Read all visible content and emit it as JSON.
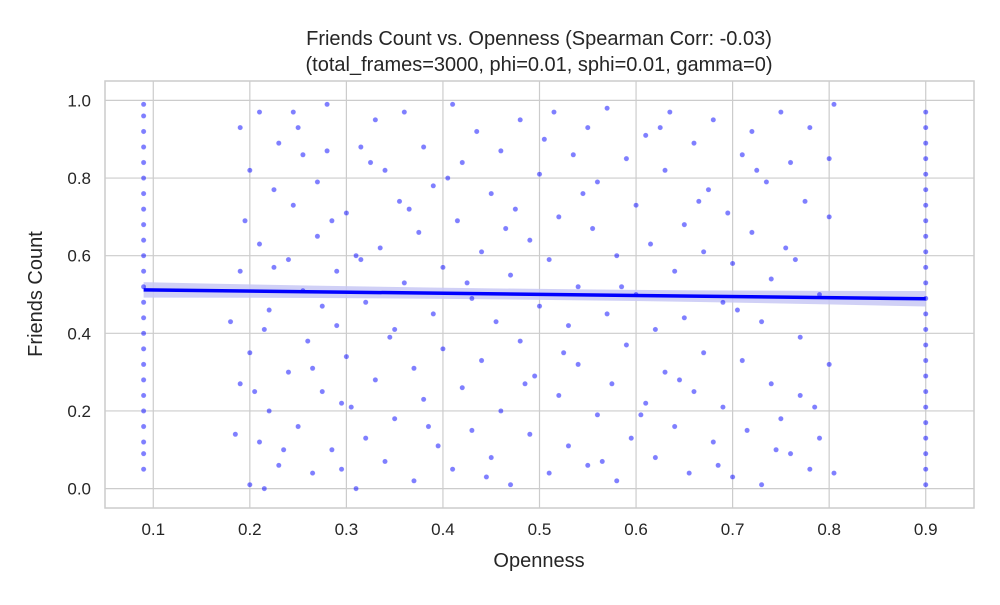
{
  "chart_data": {
    "type": "scatter",
    "title": "Friends Count vs. Openness (Spearman Corr: -0.03)",
    "subtitle": "(total_frames=3000, phi=0.01, sphi=0.01, gamma=0)",
    "xlabel": "Openness",
    "ylabel": "Friends Count",
    "xlim": [
      0.05,
      0.95
    ],
    "ylim": [
      -0.05,
      1.05
    ],
    "x_ticks": [
      "0.1",
      "0.2",
      "0.3",
      "0.4",
      "0.5",
      "0.6",
      "0.7",
      "0.8",
      "0.9"
    ],
    "y_ticks": [
      "0.0",
      "0.2",
      "0.4",
      "0.6",
      "0.8",
      "1.0"
    ],
    "grid": true,
    "point_color": "#0000ff",
    "line_color": "#0000ff",
    "band_color": "#c8c8f5",
    "regression": {
      "x": [
        0.09,
        0.9
      ],
      "y": [
        0.512,
        0.489
      ],
      "ci_halfwidth_ends": 0.02
    },
    "series": [
      {
        "values": [
          {
            "x": 0.09,
            "y": 0.05
          },
          {
            "x": 0.09,
            "y": 0.09
          },
          {
            "x": 0.09,
            "y": 0.12
          },
          {
            "x": 0.09,
            "y": 0.16
          },
          {
            "x": 0.09,
            "y": 0.2
          },
          {
            "x": 0.09,
            "y": 0.24
          },
          {
            "x": 0.09,
            "y": 0.28
          },
          {
            "x": 0.09,
            "y": 0.32
          },
          {
            "x": 0.09,
            "y": 0.36
          },
          {
            "x": 0.09,
            "y": 0.4
          },
          {
            "x": 0.09,
            "y": 0.44
          },
          {
            "x": 0.09,
            "y": 0.48
          },
          {
            "x": 0.09,
            "y": 0.52
          },
          {
            "x": 0.09,
            "y": 0.56
          },
          {
            "x": 0.09,
            "y": 0.6
          },
          {
            "x": 0.09,
            "y": 0.64
          },
          {
            "x": 0.09,
            "y": 0.68
          },
          {
            "x": 0.09,
            "y": 0.72
          },
          {
            "x": 0.09,
            "y": 0.76
          },
          {
            "x": 0.09,
            "y": 0.8
          },
          {
            "x": 0.09,
            "y": 0.84
          },
          {
            "x": 0.09,
            "y": 0.88
          },
          {
            "x": 0.09,
            "y": 0.92
          },
          {
            "x": 0.09,
            "y": 0.96
          },
          {
            "x": 0.09,
            "y": 0.99
          },
          {
            "x": 0.9,
            "y": 0.01
          },
          {
            "x": 0.9,
            "y": 0.05
          },
          {
            "x": 0.9,
            "y": 0.09
          },
          {
            "x": 0.9,
            "y": 0.13
          },
          {
            "x": 0.9,
            "y": 0.17
          },
          {
            "x": 0.9,
            "y": 0.21
          },
          {
            "x": 0.9,
            "y": 0.25
          },
          {
            "x": 0.9,
            "y": 0.29
          },
          {
            "x": 0.9,
            "y": 0.33
          },
          {
            "x": 0.9,
            "y": 0.37
          },
          {
            "x": 0.9,
            "y": 0.41
          },
          {
            "x": 0.9,
            "y": 0.45
          },
          {
            "x": 0.9,
            "y": 0.49
          },
          {
            "x": 0.9,
            "y": 0.53
          },
          {
            "x": 0.9,
            "y": 0.57
          },
          {
            "x": 0.9,
            "y": 0.61
          },
          {
            "x": 0.9,
            "y": 0.65
          },
          {
            "x": 0.9,
            "y": 0.69
          },
          {
            "x": 0.9,
            "y": 0.73
          },
          {
            "x": 0.9,
            "y": 0.77
          },
          {
            "x": 0.9,
            "y": 0.81
          },
          {
            "x": 0.9,
            "y": 0.85
          },
          {
            "x": 0.9,
            "y": 0.89
          },
          {
            "x": 0.9,
            "y": 0.93
          },
          {
            "x": 0.9,
            "y": 0.97
          },
          {
            "x": 0.18,
            "y": 0.43
          },
          {
            "x": 0.185,
            "y": 0.14
          },
          {
            "x": 0.19,
            "y": 0.93
          },
          {
            "x": 0.19,
            "y": 0.27
          },
          {
            "x": 0.19,
            "y": 0.56
          },
          {
            "x": 0.2,
            "y": 0.01
          },
          {
            "x": 0.2,
            "y": 0.82
          },
          {
            "x": 0.2,
            "y": 0.35
          },
          {
            "x": 0.21,
            "y": 0.97
          },
          {
            "x": 0.21,
            "y": 0.12
          },
          {
            "x": 0.21,
            "y": 0.63
          },
          {
            "x": 0.215,
            "y": 0.0
          },
          {
            "x": 0.22,
            "y": 0.46
          },
          {
            "x": 0.22,
            "y": 0.2
          },
          {
            "x": 0.225,
            "y": 0.77
          },
          {
            "x": 0.23,
            "y": 0.89
          },
          {
            "x": 0.23,
            "y": 0.06
          },
          {
            "x": 0.24,
            "y": 0.59
          },
          {
            "x": 0.24,
            "y": 0.3
          },
          {
            "x": 0.245,
            "y": 0.73
          },
          {
            "x": 0.25,
            "y": 0.16
          },
          {
            "x": 0.25,
            "y": 0.93
          },
          {
            "x": 0.255,
            "y": 0.51
          },
          {
            "x": 0.26,
            "y": 0.38
          },
          {
            "x": 0.265,
            "y": 0.04
          },
          {
            "x": 0.27,
            "y": 0.79
          },
          {
            "x": 0.27,
            "y": 0.65
          },
          {
            "x": 0.275,
            "y": 0.25
          },
          {
            "x": 0.28,
            "y": 0.99
          },
          {
            "x": 0.28,
            "y": 0.87
          },
          {
            "x": 0.285,
            "y": 0.1
          },
          {
            "x": 0.29,
            "y": 0.56
          },
          {
            "x": 0.29,
            "y": 0.42
          },
          {
            "x": 0.295,
            "y": 0.22
          },
          {
            "x": 0.3,
            "y": 0.71
          },
          {
            "x": 0.3,
            "y": 0.34
          },
          {
            "x": 0.31,
            "y": 0.6
          },
          {
            "x": 0.31,
            "y": 0.0
          },
          {
            "x": 0.315,
            "y": 0.88
          },
          {
            "x": 0.32,
            "y": 0.48
          },
          {
            "x": 0.32,
            "y": 0.13
          },
          {
            "x": 0.33,
            "y": 0.95
          },
          {
            "x": 0.33,
            "y": 0.28
          },
          {
            "x": 0.335,
            "y": 0.62
          },
          {
            "x": 0.34,
            "y": 0.82
          },
          {
            "x": 0.34,
            "y": 0.07
          },
          {
            "x": 0.35,
            "y": 0.41
          },
          {
            "x": 0.35,
            "y": 0.18
          },
          {
            "x": 0.355,
            "y": 0.74
          },
          {
            "x": 0.36,
            "y": 0.53
          },
          {
            "x": 0.36,
            "y": 0.97
          },
          {
            "x": 0.37,
            "y": 0.31
          },
          {
            "x": 0.37,
            "y": 0.02
          },
          {
            "x": 0.375,
            "y": 0.66
          },
          {
            "x": 0.38,
            "y": 0.88
          },
          {
            "x": 0.38,
            "y": 0.23
          },
          {
            "x": 0.39,
            "y": 0.45
          },
          {
            "x": 0.39,
            "y": 0.78
          },
          {
            "x": 0.395,
            "y": 0.11
          },
          {
            "x": 0.4,
            "y": 0.57
          },
          {
            "x": 0.4,
            "y": 0.36
          },
          {
            "x": 0.41,
            "y": 0.99
          },
          {
            "x": 0.41,
            "y": 0.05
          },
          {
            "x": 0.415,
            "y": 0.69
          },
          {
            "x": 0.42,
            "y": 0.26
          },
          {
            "x": 0.42,
            "y": 0.84
          },
          {
            "x": 0.43,
            "y": 0.49
          },
          {
            "x": 0.43,
            "y": 0.15
          },
          {
            "x": 0.435,
            "y": 0.92
          },
          {
            "x": 0.44,
            "y": 0.61
          },
          {
            "x": 0.44,
            "y": 0.33
          },
          {
            "x": 0.45,
            "y": 0.76
          },
          {
            "x": 0.45,
            "y": 0.08
          },
          {
            "x": 0.455,
            "y": 0.43
          },
          {
            "x": 0.46,
            "y": 0.2
          },
          {
            "x": 0.46,
            "y": 0.87
          },
          {
            "x": 0.47,
            "y": 0.55
          },
          {
            "x": 0.47,
            "y": 0.01
          },
          {
            "x": 0.475,
            "y": 0.72
          },
          {
            "x": 0.48,
            "y": 0.38
          },
          {
            "x": 0.48,
            "y": 0.95
          },
          {
            "x": 0.49,
            "y": 0.14
          },
          {
            "x": 0.49,
            "y": 0.64
          },
          {
            "x": 0.495,
            "y": 0.29
          },
          {
            "x": 0.5,
            "y": 0.81
          },
          {
            "x": 0.5,
            "y": 0.47
          },
          {
            "x": 0.51,
            "y": 0.04
          },
          {
            "x": 0.51,
            "y": 0.59
          },
          {
            "x": 0.515,
            "y": 0.97
          },
          {
            "x": 0.52,
            "y": 0.24
          },
          {
            "x": 0.52,
            "y": 0.7
          },
          {
            "x": 0.53,
            "y": 0.42
          },
          {
            "x": 0.53,
            "y": 0.11
          },
          {
            "x": 0.535,
            "y": 0.86
          },
          {
            "x": 0.54,
            "y": 0.52
          },
          {
            "x": 0.54,
            "y": 0.32
          },
          {
            "x": 0.55,
            "y": 0.93
          },
          {
            "x": 0.55,
            "y": 0.06
          },
          {
            "x": 0.555,
            "y": 0.67
          },
          {
            "x": 0.56,
            "y": 0.19
          },
          {
            "x": 0.56,
            "y": 0.79
          },
          {
            "x": 0.57,
            "y": 0.45
          },
          {
            "x": 0.57,
            "y": 0.98
          },
          {
            "x": 0.575,
            "y": 0.27
          },
          {
            "x": 0.58,
            "y": 0.6
          },
          {
            "x": 0.58,
            "y": 0.02
          },
          {
            "x": 0.59,
            "y": 0.85
          },
          {
            "x": 0.59,
            "y": 0.37
          },
          {
            "x": 0.595,
            "y": 0.13
          },
          {
            "x": 0.6,
            "y": 0.73
          },
          {
            "x": 0.6,
            "y": 0.5
          },
          {
            "x": 0.61,
            "y": 0.91
          },
          {
            "x": 0.61,
            "y": 0.22
          },
          {
            "x": 0.615,
            "y": 0.63
          },
          {
            "x": 0.62,
            "y": 0.08
          },
          {
            "x": 0.62,
            "y": 0.41
          },
          {
            "x": 0.63,
            "y": 0.82
          },
          {
            "x": 0.63,
            "y": 0.3
          },
          {
            "x": 0.635,
            "y": 0.97
          },
          {
            "x": 0.64,
            "y": 0.56
          },
          {
            "x": 0.64,
            "y": 0.16
          },
          {
            "x": 0.65,
            "y": 0.68
          },
          {
            "x": 0.65,
            "y": 0.44
          },
          {
            "x": 0.655,
            "y": 0.04
          },
          {
            "x": 0.66,
            "y": 0.89
          },
          {
            "x": 0.66,
            "y": 0.25
          },
          {
            "x": 0.67,
            "y": 0.61
          },
          {
            "x": 0.67,
            "y": 0.35
          },
          {
            "x": 0.675,
            "y": 0.77
          },
          {
            "x": 0.68,
            "y": 0.12
          },
          {
            "x": 0.68,
            "y": 0.95
          },
          {
            "x": 0.69,
            "y": 0.48
          },
          {
            "x": 0.69,
            "y": 0.21
          },
          {
            "x": 0.695,
            "y": 0.71
          },
          {
            "x": 0.7,
            "y": 0.03
          },
          {
            "x": 0.7,
            "y": 0.58
          },
          {
            "x": 0.71,
            "y": 0.86
          },
          {
            "x": 0.71,
            "y": 0.33
          },
          {
            "x": 0.715,
            "y": 0.15
          },
          {
            "x": 0.72,
            "y": 0.66
          },
          {
            "x": 0.72,
            "y": 0.92
          },
          {
            "x": 0.73,
            "y": 0.43
          },
          {
            "x": 0.73,
            "y": 0.01
          },
          {
            "x": 0.735,
            "y": 0.79
          },
          {
            "x": 0.74,
            "y": 0.27
          },
          {
            "x": 0.74,
            "y": 0.54
          },
          {
            "x": 0.75,
            "y": 0.97
          },
          {
            "x": 0.75,
            "y": 0.18
          },
          {
            "x": 0.755,
            "y": 0.62
          },
          {
            "x": 0.76,
            "y": 0.09
          },
          {
            "x": 0.76,
            "y": 0.84
          },
          {
            "x": 0.77,
            "y": 0.39
          },
          {
            "x": 0.77,
            "y": 0.24
          },
          {
            "x": 0.775,
            "y": 0.74
          },
          {
            "x": 0.78,
            "y": 0.05
          },
          {
            "x": 0.78,
            "y": 0.93
          },
          {
            "x": 0.79,
            "y": 0.5
          },
          {
            "x": 0.79,
            "y": 0.13
          },
          {
            "x": 0.8,
            "y": 0.7
          },
          {
            "x": 0.8,
            "y": 0.32
          },
          {
            "x": 0.805,
            "y": 0.99
          },
          {
            "x": 0.805,
            "y": 0.04
          },
          {
            "x": 0.8,
            "y": 0.85
          },
          {
            "x": 0.785,
            "y": 0.21
          },
          {
            "x": 0.765,
            "y": 0.59
          },
          {
            "x": 0.745,
            "y": 0.1
          },
          {
            "x": 0.725,
            "y": 0.82
          },
          {
            "x": 0.705,
            "y": 0.46
          },
          {
            "x": 0.685,
            "y": 0.06
          },
          {
            "x": 0.665,
            "y": 0.74
          },
          {
            "x": 0.645,
            "y": 0.28
          },
          {
            "x": 0.625,
            "y": 0.93
          },
          {
            "x": 0.605,
            "y": 0.19
          },
          {
            "x": 0.585,
            "y": 0.52
          },
          {
            "x": 0.565,
            "y": 0.07
          },
          {
            "x": 0.545,
            "y": 0.76
          },
          {
            "x": 0.525,
            "y": 0.35
          },
          {
            "x": 0.505,
            "y": 0.9
          },
          {
            "x": 0.485,
            "y": 0.27
          },
          {
            "x": 0.465,
            "y": 0.67
          },
          {
            "x": 0.445,
            "y": 0.03
          },
          {
            "x": 0.425,
            "y": 0.53
          },
          {
            "x": 0.405,
            "y": 0.8
          },
          {
            "x": 0.385,
            "y": 0.16
          },
          {
            "x": 0.365,
            "y": 0.72
          },
          {
            "x": 0.345,
            "y": 0.39
          },
          {
            "x": 0.325,
            "y": 0.84
          },
          {
            "x": 0.305,
            "y": 0.21
          },
          {
            "x": 0.285,
            "y": 0.69
          },
          {
            "x": 0.265,
            "y": 0.31
          },
          {
            "x": 0.245,
            "y": 0.97
          },
          {
            "x": 0.225,
            "y": 0.57
          },
          {
            "x": 0.205,
            "y": 0.25
          },
          {
            "x": 0.195,
            "y": 0.69
          },
          {
            "x": 0.215,
            "y": 0.41
          },
          {
            "x": 0.235,
            "y": 0.1
          },
          {
            "x": 0.255,
            "y": 0.86
          },
          {
            "x": 0.275,
            "y": 0.47
          },
          {
            "x": 0.295,
            "y": 0.05
          },
          {
            "x": 0.315,
            "y": 0.59
          }
        ]
      }
    ]
  }
}
